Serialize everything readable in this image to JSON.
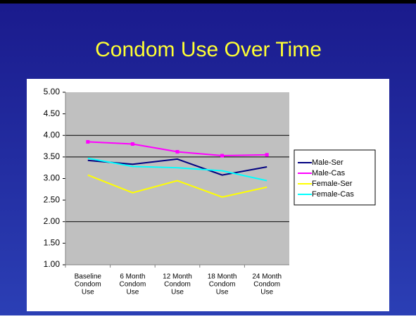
{
  "chart_data": {
    "type": "line",
    "title": "Condom Use Over Time",
    "categories": [
      [
        "Baseline",
        "Condom",
        "Use"
      ],
      [
        "6 Month",
        "Condom",
        "Use"
      ],
      [
        "12 Month",
        "Condom",
        "Use"
      ],
      [
        "18 Month",
        "Condom",
        "Use"
      ],
      [
        "24 Month",
        "Condom",
        "Use"
      ]
    ],
    "series": [
      {
        "name": "Male-Ser",
        "color": "#000080",
        "values": [
          3.42,
          3.33,
          3.45,
          3.08,
          3.27
        ]
      },
      {
        "name": "Male-Cas",
        "color": "#ff00ff",
        "marker": "square",
        "values": [
          3.85,
          3.8,
          3.62,
          3.53,
          3.55
        ]
      },
      {
        "name": "Female-Ser",
        "color": "#ffff00",
        "values": [
          3.08,
          2.67,
          2.95,
          2.57,
          2.8
        ]
      },
      {
        "name": "Female-Cas",
        "color": "#00ffff",
        "values": [
          3.47,
          3.28,
          3.25,
          3.18,
          2.95
        ]
      }
    ],
    "ylim": [
      1,
      5
    ],
    "yticks": [
      {
        "value": 1,
        "label": "1.00"
      },
      {
        "value": 1.5,
        "label": "1.50"
      },
      {
        "value": 2,
        "label": "2.00"
      },
      {
        "value": 2.5,
        "label": "2.50"
      },
      {
        "value": 3,
        "label": "3.00"
      },
      {
        "value": 3.5,
        "label": "3.50"
      },
      {
        "value": 4,
        "label": "4.00"
      },
      {
        "value": 4.5,
        "label": "4.50"
      },
      {
        "value": 5,
        "label": "5.00"
      }
    ],
    "grid_values": [
      2,
      3.5,
      4
    ],
    "legend": "right"
  }
}
